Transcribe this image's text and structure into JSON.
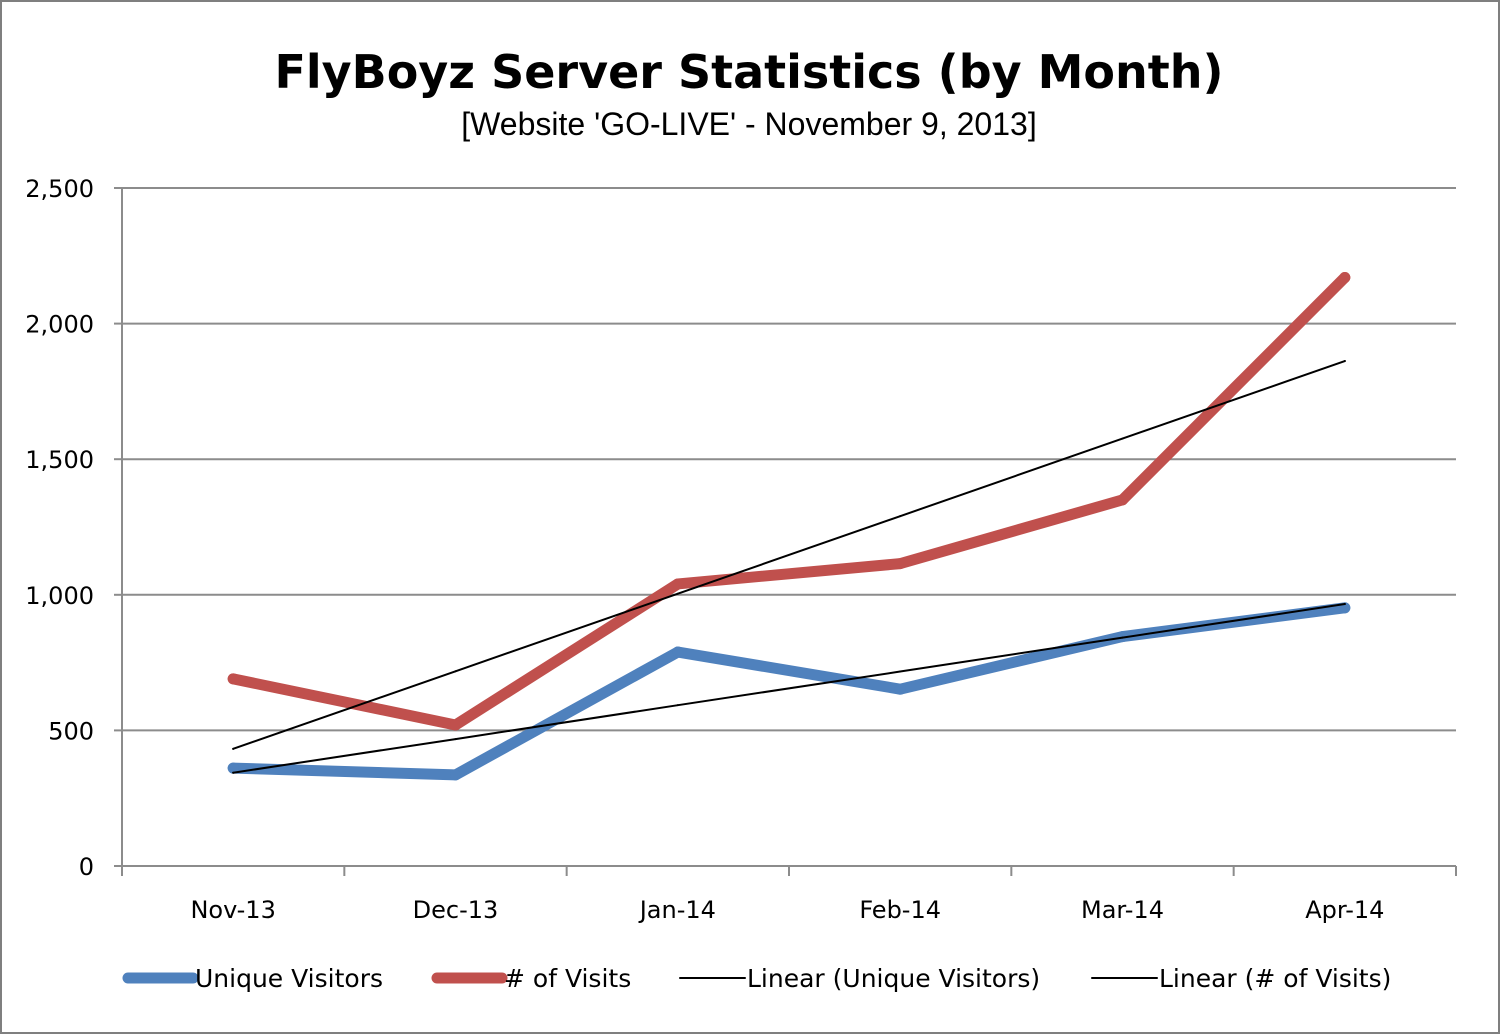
{
  "chart_data": {
    "type": "line",
    "title": "FlyBoyz Server Statistics (by Month)",
    "subtitle": "[Website 'GO-LIVE' - November 9, 2013]",
    "categories": [
      "Nov-13",
      "Dec-13",
      "Jan-14",
      "Feb-14",
      "Mar-14",
      "Apr-14"
    ],
    "ylim": [
      0,
      2500
    ],
    "yticks": [
      0,
      500,
      1000,
      1500,
      2000,
      2500
    ],
    "ytick_labels": [
      "0",
      "500",
      "1,000",
      "1,500",
      "2,000",
      "2,500"
    ],
    "grid": true,
    "legend_position": "bottom",
    "series": [
      {
        "name": "Unique Visitors",
        "values": [
          361,
          336,
          789,
          652,
          846,
          952
        ],
        "color": "#4f81bd",
        "style": "thick"
      },
      {
        "name": "# of Visits",
        "values": [
          690,
          520,
          1040,
          1115,
          1350,
          2170
        ],
        "color": "#c0504d",
        "style": "thick"
      },
      {
        "name": "Linear (Unique Visitors)",
        "values": [
          344,
          468,
          593,
          717,
          842,
          966
        ],
        "color": "#000000",
        "style": "thin"
      },
      {
        "name": "Linear (# of Visits)",
        "values": [
          432,
          718,
          1004,
          1290,
          1576,
          1862
        ],
        "color": "#000000",
        "style": "thin"
      }
    ]
  }
}
